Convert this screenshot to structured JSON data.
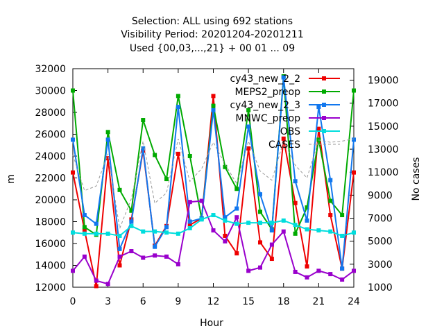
{
  "chart_data": {
    "type": "line",
    "title": [
      "Selection: ALL using   692 stations",
      "Visibility   Period: 20201204-20201211",
      "Used {00,03,...,21} + 00 01 ... 09"
    ],
    "xlabel": "Hour",
    "ylabel": "m",
    "y2label": "No cases",
    "xlim": [
      0,
      24
    ],
    "ylim": [
      12000,
      32000
    ],
    "y2lim": [
      1000,
      20000
    ],
    "xticks": [
      0,
      3,
      6,
      9,
      12,
      15,
      18,
      21,
      24
    ],
    "yticks": [
      12000,
      14000,
      16000,
      18000,
      20000,
      22000,
      24000,
      26000,
      28000,
      30000,
      32000
    ],
    "y2ticks": [
      1000,
      3000,
      5000,
      7000,
      9000,
      11000,
      13000,
      15000,
      17000,
      19000
    ],
    "x": [
      0,
      1,
      2,
      3,
      4,
      5,
      6,
      7,
      8,
      9,
      10,
      11,
      12,
      13,
      14,
      15,
      16,
      17,
      18,
      19,
      20,
      21,
      22,
      23,
      24
    ],
    "legend_position": "top-right",
    "series": [
      {
        "name": "cy43_new_2_2",
        "color": "#ee0000",
        "axis": "y",
        "values": [
          22500,
          17200,
          12100,
          23800,
          14000,
          18200,
          24500,
          15800,
          17600,
          24200,
          17700,
          18300,
          29500,
          16700,
          15100,
          24700,
          16100,
          14600,
          25600,
          19700,
          13900,
          26500,
          18600,
          13700,
          22500
        ]
      },
      {
        "name": "MEPS2_preop",
        "color": "#00aa00",
        "axis": "y",
        "values": [
          30000,
          17500,
          16800,
          26200,
          20900,
          19000,
          27300,
          24100,
          21900,
          29500,
          24000,
          18300,
          28600,
          23000,
          21000,
          28200,
          18900,
          17300,
          31300,
          16900,
          19300,
          25500,
          19900,
          18600,
          30000
        ]
      },
      {
        "name": "cy43_new_2_3",
        "color": "#1177ee",
        "axis": "y",
        "values": [
          25500,
          18600,
          17800,
          25500,
          15500,
          18000,
          24700,
          15700,
          17500,
          28500,
          18000,
          18300,
          28200,
          18400,
          19200,
          26700,
          20500,
          17200,
          31200,
          21700,
          18100,
          28500,
          21800,
          13700,
          25500
        ]
      },
      {
        "name": "MNWC_preop",
        "color": "#9900cc",
        "axis": "y",
        "values": [
          13500,
          14800,
          12600,
          12300,
          14800,
          15300,
          14700,
          14900,
          14800,
          14100,
          19800,
          19900,
          17200,
          16200,
          18400,
          13500,
          13800,
          15900,
          17100,
          13400,
          12900,
          13500,
          13200,
          12700,
          13500
        ]
      },
      {
        "name": "OBS",
        "color": "#00dddd",
        "axis": "y",
        "values": [
          17000,
          16900,
          16900,
          16900,
          16700,
          17600,
          17100,
          17100,
          17000,
          16900,
          17400,
          18200,
          18600,
          18100,
          17800,
          17900,
          17900,
          17900,
          18100,
          17700,
          17300,
          17200,
          17100,
          16700,
          17000
        ]
      },
      {
        "name": "CASES",
        "color": "#999999",
        "axis": "y2",
        "dashed": true,
        "values": [
          12500,
          9400,
          9800,
          12600,
          6100,
          8700,
          13700,
          8300,
          9200,
          13900,
          10200,
          11300,
          13600,
          11700,
          10000,
          13700,
          11100,
          10300,
          13700,
          11600,
          10500,
          13800,
          13600,
          13700,
          13900
        ]
      }
    ]
  }
}
